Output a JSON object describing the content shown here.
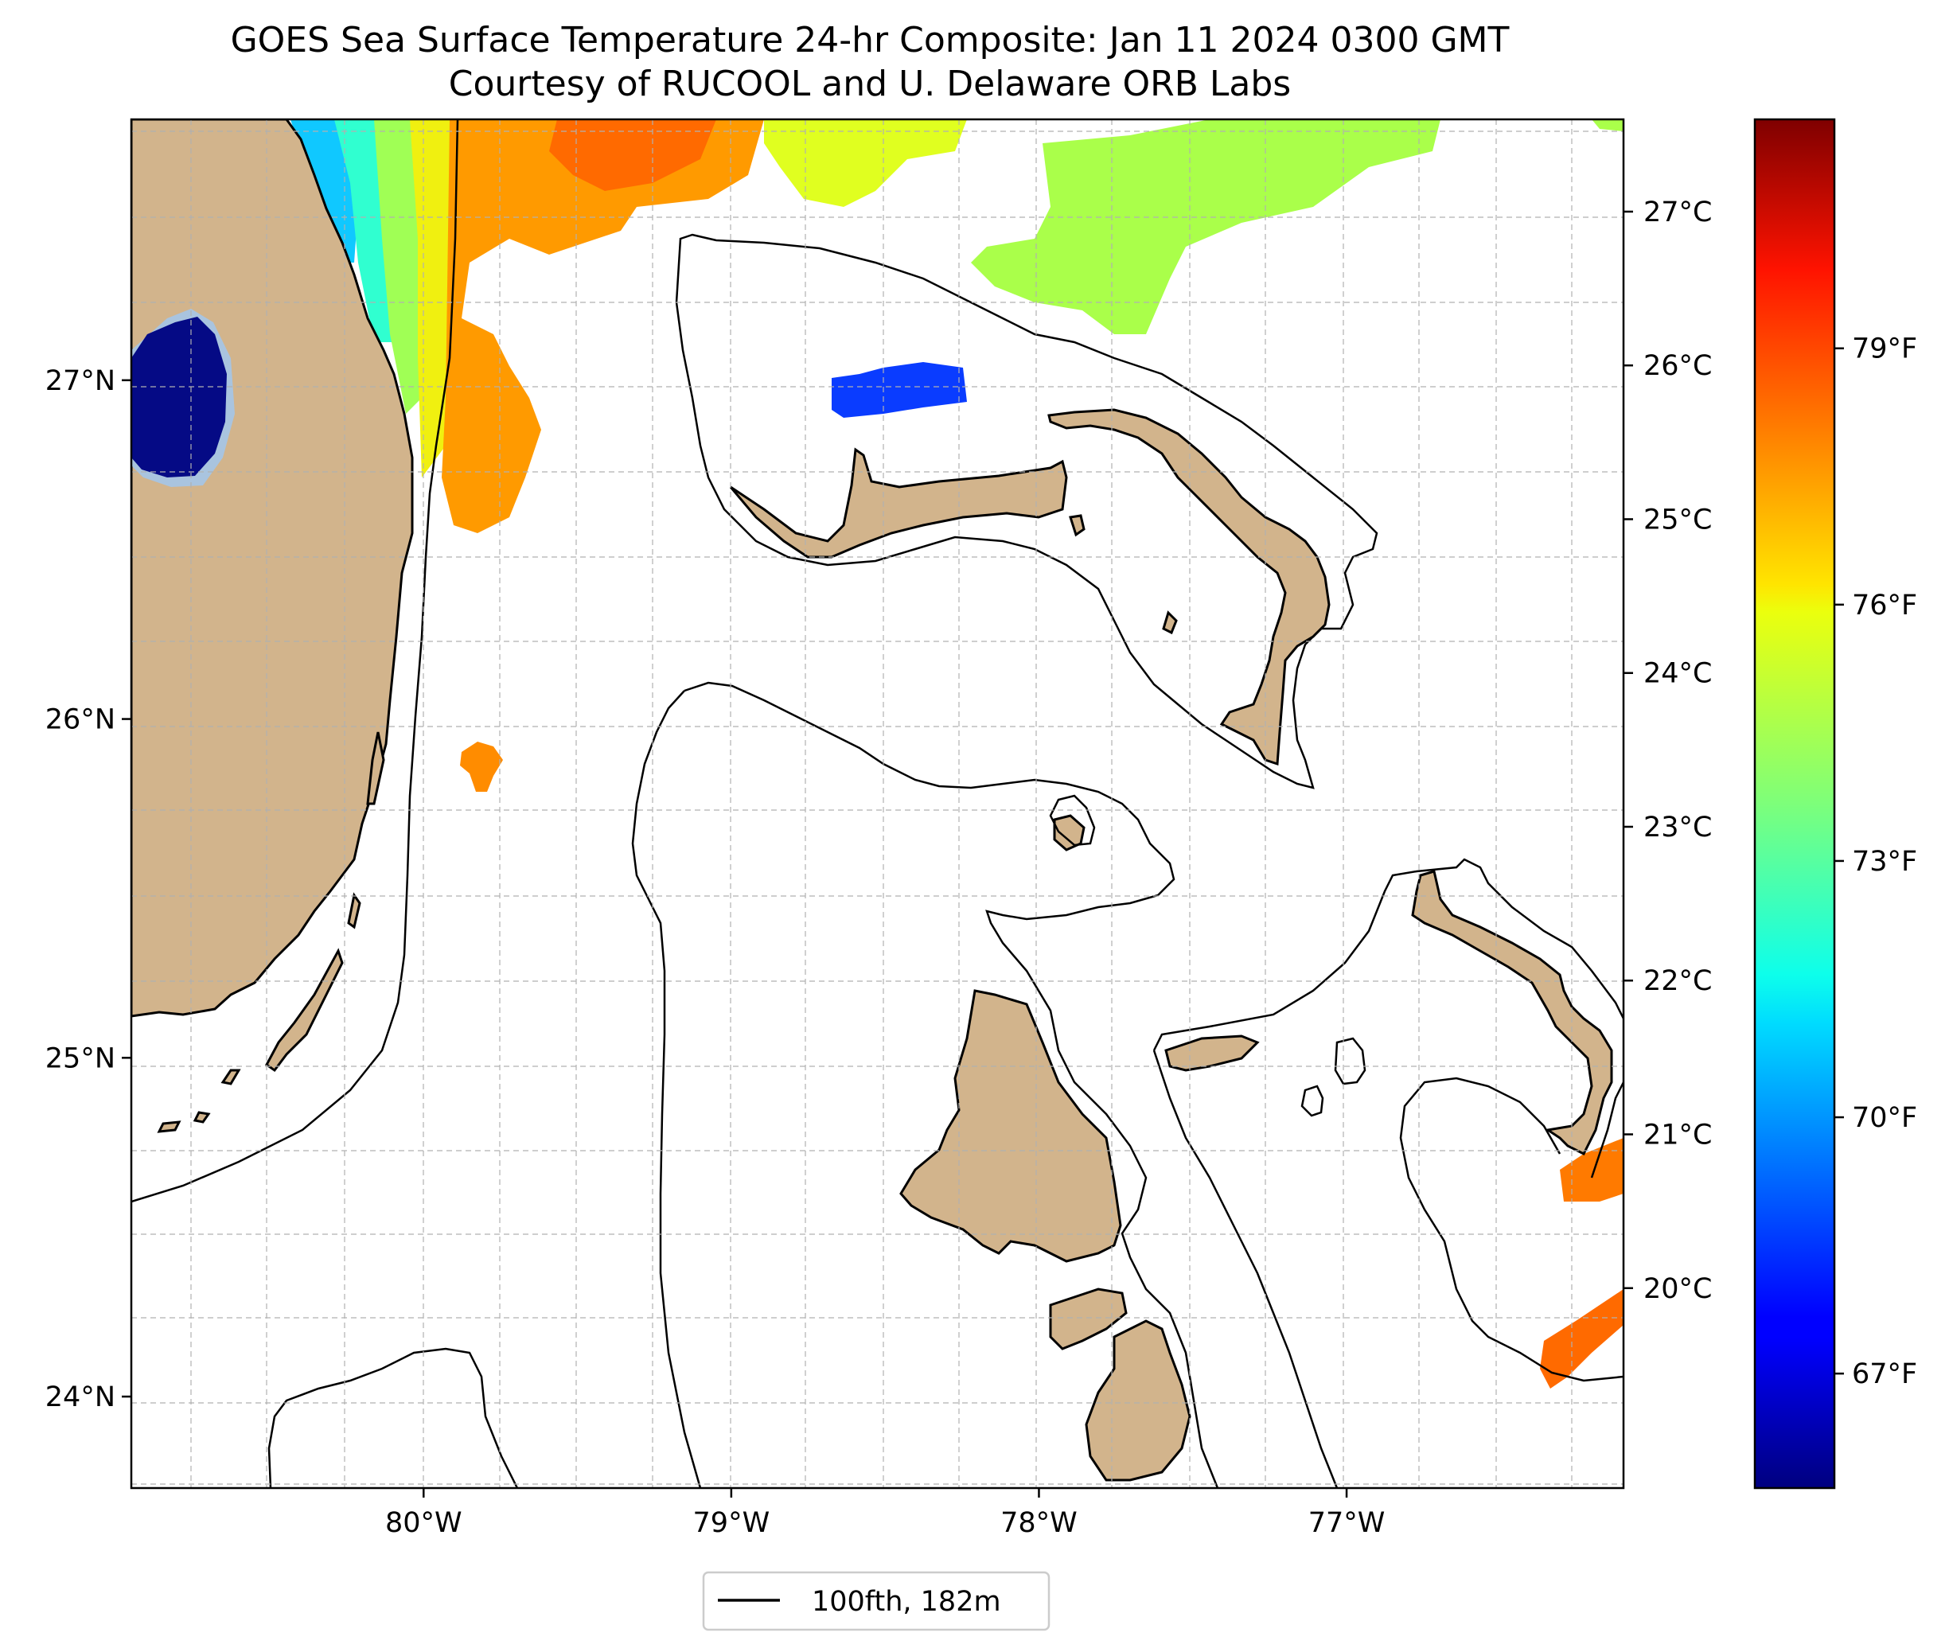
{
  "title": {
    "line1": "GOES Sea Surface Temperature 24-hr Composite: Jan 11 2024 0300 GMT",
    "line2": "Courtesy of RUCOOL and U. Delaware ORB Labs"
  },
  "map": {
    "lon_range": [
      -80.95,
      -76.1
    ],
    "lat_range": [
      23.73,
      27.77
    ],
    "lat_ticks": [
      {
        "value": 24,
        "label": "24°N"
      },
      {
        "value": 25,
        "label": "25°N"
      },
      {
        "value": 26,
        "label": "26°N"
      },
      {
        "value": 27,
        "label": "27°N"
      }
    ],
    "lon_ticks": [
      {
        "value": -80,
        "label": "80°W"
      },
      {
        "value": -79,
        "label": "79°W"
      },
      {
        "value": -78,
        "label": "78°W"
      },
      {
        "value": -77,
        "label": "77°W"
      }
    ],
    "colors": {
      "land": "#d2b48c",
      "ocean": "#ffffff",
      "grid": "#b0b0b0",
      "contour": "#000000"
    }
  },
  "colorbar": {
    "colormap": "jet",
    "range_c": [
      18.7,
      27.6
    ],
    "celsius_ticks": [
      {
        "value": 20,
        "label": "20°C"
      },
      {
        "value": 21,
        "label": "21°C"
      },
      {
        "value": 22,
        "label": "22°C"
      },
      {
        "value": 23,
        "label": "23°C"
      },
      {
        "value": 24,
        "label": "24°C"
      },
      {
        "value": 25,
        "label": "25°C"
      },
      {
        "value": 26,
        "label": "26°C"
      },
      {
        "value": 27,
        "label": "27°C"
      }
    ],
    "fahrenheit_ticks": [
      {
        "value": 67,
        "label": "67°F"
      },
      {
        "value": 70,
        "label": "70°F"
      },
      {
        "value": 73,
        "label": "73°F"
      },
      {
        "value": 76,
        "label": "76°F"
      },
      {
        "value": 79,
        "label": "79°F"
      }
    ]
  },
  "legend": {
    "label": "100fth, 182m",
    "line_color": "#000000"
  }
}
